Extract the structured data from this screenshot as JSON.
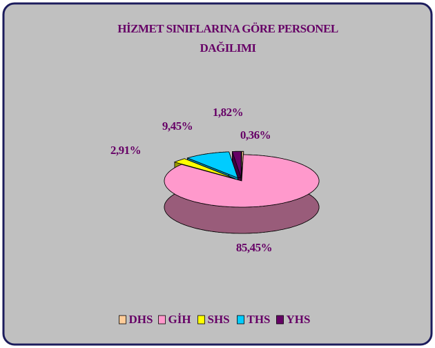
{
  "chart_data": {
    "type": "pie3d",
    "title": "HİZMET SINIFLARINA GÖRE PERSONEL DAĞILIMI",
    "categories": [
      "DHS",
      "GİH",
      "SHS",
      "THS",
      "YHS"
    ],
    "values": [
      0.36,
      85.45,
      2.91,
      9.45,
      1.82
    ],
    "value_labels": [
      "0,36%",
      "85,45%",
      "2,91%",
      "9,45%",
      "1,82%"
    ],
    "colors": [
      "#ffcc99",
      "#ff99cc",
      "#ffff00",
      "#00ccff",
      "#660066"
    ],
    "legend": "bottom"
  }
}
